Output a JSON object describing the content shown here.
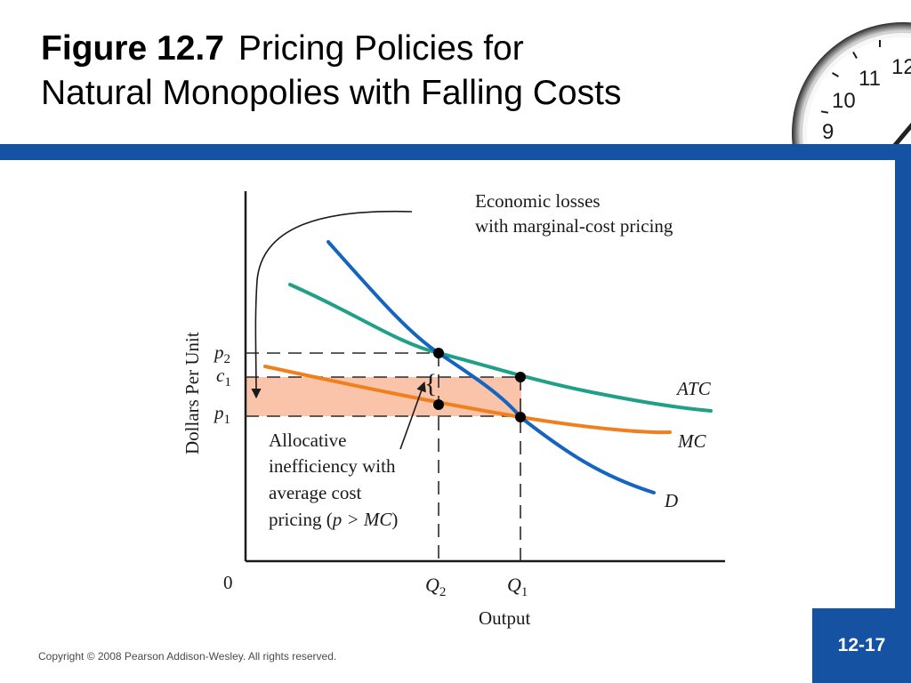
{
  "slide": {
    "figure_number": "Figure 12.7",
    "title_line1": "Pricing Policies for",
    "title_line2": "Natural Monopolies with Falling Costs",
    "copyright": "Copyright © 2008 Pearson Addison-Wesley. All rights reserved.",
    "page_number": "12-17",
    "brand_color": "#1553a2",
    "clock_numerals": [
      "12",
      "11",
      "10",
      "9"
    ]
  },
  "diagram": {
    "y_axis_label": "Dollars Per Unit",
    "x_axis_label": "Output",
    "origin_label": "0",
    "y_ticks": [
      {
        "base": "p",
        "sub": "2"
      },
      {
        "base": "c",
        "sub": "1"
      },
      {
        "base": "p",
        "sub": "1"
      }
    ],
    "x_ticks": [
      {
        "base": "Q",
        "sub": "2"
      },
      {
        "base": "Q",
        "sub": "1"
      }
    ],
    "curves": {
      "atc": {
        "label": "ATC",
        "color": "#1fa087"
      },
      "mc": {
        "label": "MC",
        "color": "#f07f1e"
      },
      "demand": {
        "label": "D",
        "color": "#1565c0"
      }
    },
    "loss_region_color": "#f9c4aa",
    "annotation_losses_line1": "Economic losses",
    "annotation_losses_line2": "with marginal-cost pricing",
    "annotation_ineff_line1": "Allocative",
    "annotation_ineff_line2": "inefficiency with",
    "annotation_ineff_line3": "average cost",
    "annotation_ineff_line4_pre": "pricing (",
    "annotation_ineff_line4_expr": "p > MC",
    "annotation_ineff_line4_post": ")",
    "brace_symbol": "{"
  }
}
